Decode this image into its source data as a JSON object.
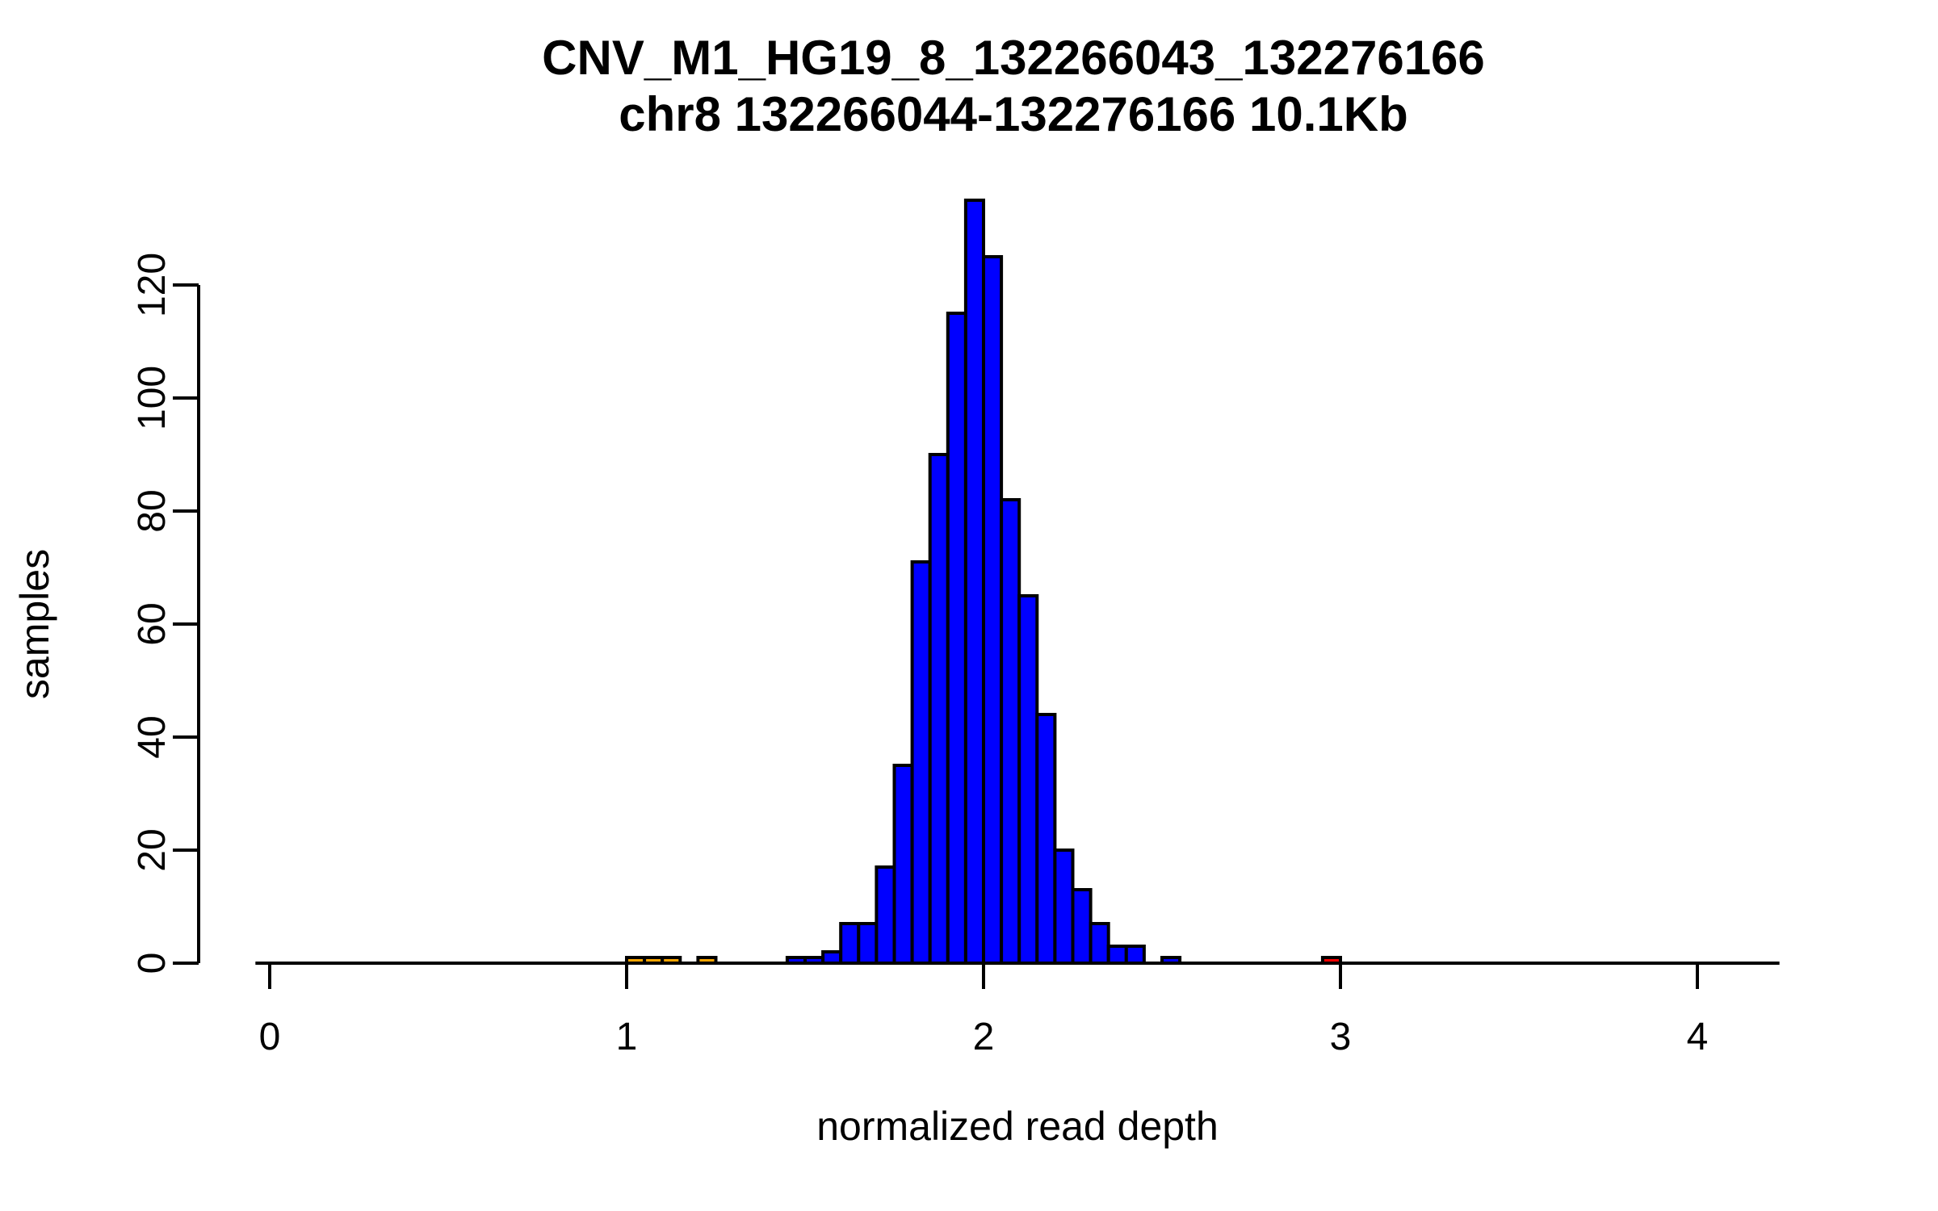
{
  "chart": {
    "title": "CNV_M1_HG19_8_132266043_132276166",
    "subtitle": "chr8 132266044-132276166 10.1Kb",
    "chart_data": {
      "type": "bar",
      "subtype": "histogram",
      "title": "CNV_M1_HG19_8_132266043_132276166",
      "subtitle": "chr8 132266044-132276166 10.1Kb",
      "xlabel": "normalized read depth",
      "ylabel": "samples",
      "x_ticks": [
        0,
        1,
        2,
        3,
        4
      ],
      "y_ticks": [
        0,
        20,
        40,
        60,
        80,
        100,
        120
      ],
      "xlim": [
        -0.04,
        4.23
      ],
      "ylim": [
        0,
        138
      ],
      "bin_width": 0.05,
      "grid": false,
      "legend": "none",
      "bar_border_color": "#000000",
      "background_color": "#ffffff",
      "series": [
        {
          "name": "blue-bars",
          "color": "#0000FF",
          "bins": [
            {
              "start": 1.45,
              "count": 1
            },
            {
              "start": 1.5,
              "count": 1
            },
            {
              "start": 1.55,
              "count": 2
            },
            {
              "start": 1.6,
              "count": 7
            },
            {
              "start": 1.65,
              "count": 7
            },
            {
              "start": 1.7,
              "count": 17
            },
            {
              "start": 1.75,
              "count": 35
            },
            {
              "start": 1.8,
              "count": 71
            },
            {
              "start": 1.85,
              "count": 90
            },
            {
              "start": 1.9,
              "count": 115
            },
            {
              "start": 1.95,
              "count": 135
            },
            {
              "start": 2.0,
              "count": 125
            },
            {
              "start": 2.05,
              "count": 82
            },
            {
              "start": 2.1,
              "count": 65
            },
            {
              "start": 2.15,
              "count": 44
            },
            {
              "start": 2.2,
              "count": 20
            },
            {
              "start": 2.25,
              "count": 13
            },
            {
              "start": 2.3,
              "count": 7
            },
            {
              "start": 2.35,
              "count": 3
            },
            {
              "start": 2.4,
              "count": 3
            },
            {
              "start": 2.5,
              "count": 1
            }
          ]
        },
        {
          "name": "orange-bars",
          "color": "#FFA500",
          "bins": [
            {
              "start": 1.0,
              "count": 1
            },
            {
              "start": 1.05,
              "count": 1
            },
            {
              "start": 1.1,
              "count": 1
            },
            {
              "start": 1.2,
              "count": 1
            }
          ]
        },
        {
          "name": "red-bars",
          "color": "#FF0000",
          "bins": [
            {
              "start": 2.95,
              "count": 1
            }
          ]
        }
      ]
    }
  }
}
